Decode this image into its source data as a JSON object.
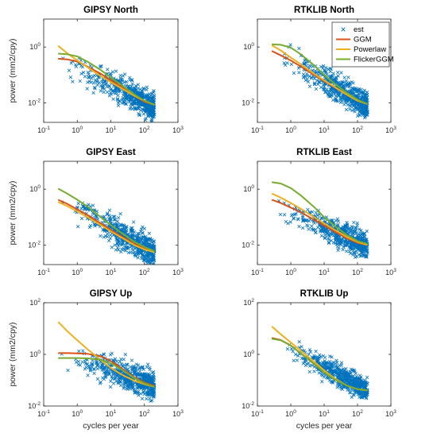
{
  "figure": {
    "ylabel": "power (mm2/cpy)",
    "xlabel": "cycles per year"
  },
  "legend": {
    "entries": [
      {
        "name": "est",
        "color": "#0072BD",
        "style": "marker"
      },
      {
        "name": "GGM",
        "color": "#D95319",
        "style": "line"
      },
      {
        "name": "Powerlaw",
        "color": "#EDB120",
        "style": "line"
      },
      {
        "name": "FlickerGGM",
        "color": "#77AC30",
        "style": "line"
      }
    ]
  },
  "chart_data": [
    {
      "type": "scatter",
      "title": "GIPSY North",
      "xscale": "log",
      "yscale": "log",
      "xlim": [
        0.1,
        1000
      ],
      "ylim": [
        0.002,
        10
      ],
      "xticks": [
        "10-1",
        "100",
        "101",
        "102",
        "103"
      ],
      "yticks": [
        "10-2",
        "100"
      ],
      "ylabel": "power (mm2/cpy)",
      "xlabel": "",
      "est": {
        "fmin": 0.27,
        "fmax": 200,
        "y_at_fmin": 0.35,
        "y_at_fmax": 0.007,
        "spread_decades": 0.45
      },
      "series": [
        {
          "name": "GGM",
          "x": [
            0.27,
            0.5,
            1,
            2,
            5,
            10,
            20,
            50,
            100,
            200
          ],
          "y": [
            0.38,
            0.36,
            0.3,
            0.2,
            0.11,
            0.065,
            0.038,
            0.018,
            0.011,
            0.0085
          ]
        },
        {
          "name": "Powerlaw",
          "x": [
            0.27,
            0.5,
            1,
            2,
            5,
            10,
            20,
            50,
            100,
            200
          ],
          "y": [
            1.1,
            0.6,
            0.33,
            0.19,
            0.09,
            0.055,
            0.034,
            0.018,
            0.012,
            0.0085
          ]
        },
        {
          "name": "FlickerGGM",
          "x": [
            0.27,
            0.5,
            1,
            2,
            5,
            10,
            20,
            50,
            100,
            200
          ],
          "y": [
            0.58,
            0.55,
            0.46,
            0.3,
            0.15,
            0.08,
            0.045,
            0.02,
            0.012,
            0.0085
          ]
        }
      ]
    },
    {
      "type": "scatter",
      "title": "RTKLIB North",
      "xscale": "log",
      "yscale": "log",
      "xlim": [
        0.1,
        1000
      ],
      "ylim": [
        0.002,
        10
      ],
      "xticks": [
        "10-1",
        "100",
        "101",
        "102",
        "103"
      ],
      "yticks": [
        "10-2",
        "100"
      ],
      "ylabel": "",
      "xlabel": "",
      "est": {
        "fmin": 0.27,
        "fmax": 200,
        "y_at_fmin": 0.8,
        "y_at_fmax": 0.008,
        "spread_decades": 0.45
      },
      "series": [
        {
          "name": "GGM",
          "x": [
            0.27,
            0.5,
            1,
            2,
            5,
            10,
            20,
            50,
            100,
            200
          ],
          "y": [
            0.72,
            0.5,
            0.33,
            0.2,
            0.1,
            0.06,
            0.037,
            0.019,
            0.012,
            0.009
          ]
        },
        {
          "name": "Powerlaw",
          "x": [
            0.27,
            0.5,
            1,
            2,
            5,
            10,
            20,
            50,
            100,
            200
          ],
          "y": [
            1.15,
            0.75,
            0.42,
            0.24,
            0.11,
            0.064,
            0.038,
            0.019,
            0.012,
            0.009
          ]
        },
        {
          "name": "FlickerGGM",
          "x": [
            0.27,
            0.5,
            1,
            2,
            5,
            10,
            20,
            50,
            100,
            200
          ],
          "y": [
            1.25,
            1.2,
            0.95,
            0.55,
            0.22,
            0.1,
            0.05,
            0.022,
            0.013,
            0.009
          ]
        }
      ]
    },
    {
      "type": "scatter",
      "title": "GIPSY East",
      "xscale": "log",
      "yscale": "log",
      "xlim": [
        0.1,
        1000
      ],
      "ylim": [
        0.002,
        10
      ],
      "xticks": [
        "10-1",
        "100",
        "101",
        "102",
        "103"
      ],
      "yticks": [
        "10-2",
        "100"
      ],
      "ylabel": "power (mm2/cpy)",
      "xlabel": "",
      "est": {
        "fmin": 0.27,
        "fmax": 200,
        "y_at_fmin": 0.45,
        "y_at_fmax": 0.005,
        "spread_decades": 0.45
      },
      "series": [
        {
          "name": "GGM",
          "x": [
            0.27,
            0.5,
            1,
            2,
            5,
            10,
            20,
            50,
            100,
            200
          ],
          "y": [
            0.42,
            0.3,
            0.19,
            0.12,
            0.06,
            0.035,
            0.021,
            0.011,
            0.0075,
            0.006
          ]
        },
        {
          "name": "Powerlaw",
          "x": [
            0.27,
            0.5,
            1,
            2,
            5,
            10,
            20,
            50,
            100,
            200
          ],
          "y": [
            0.35,
            0.25,
            0.16,
            0.1,
            0.052,
            0.031,
            0.019,
            0.01,
            0.007,
            0.0055
          ]
        },
        {
          "name": "FlickerGGM",
          "x": [
            0.27,
            0.5,
            1,
            2,
            5,
            10,
            20,
            50,
            100,
            200
          ],
          "y": [
            1.05,
            0.7,
            0.42,
            0.24,
            0.1,
            0.052,
            0.028,
            0.013,
            0.0085,
            0.006
          ]
        }
      ]
    },
    {
      "type": "scatter",
      "title": "RTKLIB East",
      "xscale": "log",
      "yscale": "log",
      "xlim": [
        0.1,
        1000
      ],
      "ylim": [
        0.002,
        10
      ],
      "xticks": [
        "10-1",
        "100",
        "101",
        "102",
        "103"
      ],
      "yticks": [
        "10-2",
        "100"
      ],
      "ylabel": "",
      "xlabel": "",
      "est": {
        "fmin": 0.27,
        "fmax": 200,
        "y_at_fmin": 0.3,
        "y_at_fmax": 0.009,
        "spread_decades": 0.42
      },
      "series": [
        {
          "name": "GGM",
          "x": [
            0.27,
            0.5,
            1,
            2,
            5,
            10,
            20,
            50,
            100,
            200
          ],
          "y": [
            0.42,
            0.32,
            0.22,
            0.15,
            0.08,
            0.05,
            0.031,
            0.017,
            0.012,
            0.01
          ]
        },
        {
          "name": "Powerlaw",
          "x": [
            0.27,
            0.5,
            1,
            2,
            5,
            10,
            20,
            50,
            100,
            200
          ],
          "y": [
            0.7,
            0.5,
            0.32,
            0.2,
            0.1,
            0.06,
            0.036,
            0.019,
            0.013,
            0.01
          ]
        },
        {
          "name": "FlickerGGM",
          "x": [
            0.27,
            0.5,
            1,
            2,
            5,
            10,
            20,
            50,
            100,
            200
          ],
          "y": [
            1.8,
            1.6,
            1.1,
            0.6,
            0.23,
            0.1,
            0.05,
            0.022,
            0.014,
            0.011
          ]
        }
      ]
    },
    {
      "type": "scatter",
      "title": "GIPSY Up",
      "xscale": "log",
      "yscale": "log",
      "xlim": [
        0.1,
        1000
      ],
      "ylim": [
        0.01,
        100
      ],
      "xticks": [
        "10-1",
        "100",
        "101",
        "102",
        "103"
      ],
      "yticks": [
        "10-2",
        "100",
        "102"
      ],
      "ylabel": "power (mm2/cpy)",
      "xlabel": "cycles per year",
      "est": {
        "fmin": 0.27,
        "fmax": 200,
        "y_at_fmin": 1.2,
        "y_at_fmax": 0.06,
        "spread_decades": 0.5
      },
      "series": [
        {
          "name": "GGM",
          "x": [
            0.27,
            0.5,
            1,
            2,
            5,
            10,
            20,
            50,
            100,
            200
          ],
          "y": [
            1.12,
            1.12,
            1.1,
            1.05,
            0.85,
            0.55,
            0.3,
            0.13,
            0.08,
            0.06
          ]
        },
        {
          "name": "Powerlaw",
          "x": [
            0.27,
            0.5,
            1,
            2,
            5,
            10,
            20,
            50,
            100,
            200
          ],
          "y": [
            18,
            8,
            3.5,
            1.6,
            0.6,
            0.3,
            0.17,
            0.095,
            0.07,
            0.055
          ]
        },
        {
          "name": "FlickerGGM",
          "x": [
            0.27,
            0.5,
            1,
            2,
            5,
            10,
            20,
            50,
            100,
            200
          ],
          "y": [
            0.72,
            0.72,
            0.72,
            0.7,
            0.62,
            0.45,
            0.27,
            0.12,
            0.075,
            0.055
          ]
        }
      ]
    },
    {
      "type": "scatter",
      "title": "RTKLIB Up",
      "xscale": "log",
      "yscale": "log",
      "xlim": [
        0.1,
        1000
      ],
      "ylim": [
        0.01,
        100
      ],
      "xticks": [
        "10-1",
        "100",
        "101",
        "102",
        "103"
      ],
      "yticks": [
        "10-2",
        "100",
        "102"
      ],
      "ylabel": "",
      "xlabel": "cycles per year",
      "est": {
        "fmin": 0.27,
        "fmax": 200,
        "y_at_fmin": 4,
        "y_at_fmax": 0.04,
        "spread_decades": 0.4
      },
      "series": [
        {
          "name": "GGM",
          "x": [
            0.27,
            0.5,
            1,
            2,
            5,
            10,
            20,
            50,
            100,
            200
          ],
          "y": [
            4.3,
            3.6,
            2.2,
            1.1,
            0.42,
            0.2,
            0.11,
            0.06,
            0.045,
            0.04
          ]
        },
        {
          "name": "Powerlaw",
          "x": [
            0.27,
            0.5,
            1,
            2,
            5,
            10,
            20,
            50,
            100,
            200
          ],
          "y": [
            12,
            6,
            2.9,
            1.4,
            0.52,
            0.24,
            0.12,
            0.06,
            0.045,
            0.04
          ]
        },
        {
          "name": "FlickerGGM",
          "x": [
            0.27,
            0.5,
            1,
            2,
            5,
            10,
            20,
            50,
            100,
            200
          ],
          "y": [
            4.0,
            3.5,
            2.2,
            1.1,
            0.42,
            0.2,
            0.11,
            0.06,
            0.045,
            0.04
          ]
        }
      ]
    }
  ]
}
